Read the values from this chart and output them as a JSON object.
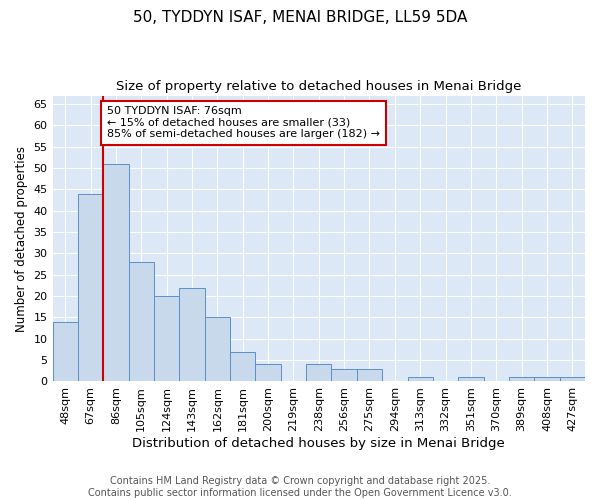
{
  "title1": "50, TYDDYN ISAF, MENAI BRIDGE, LL59 5DA",
  "title2": "Size of property relative to detached houses in Menai Bridge",
  "xlabel": "Distribution of detached houses by size in Menai Bridge",
  "ylabel": "Number of detached properties",
  "categories": [
    "48sqm",
    "67sqm",
    "86sqm",
    "105sqm",
    "124sqm",
    "143sqm",
    "162sqm",
    "181sqm",
    "200sqm",
    "219sqm",
    "238sqm",
    "256sqm",
    "275sqm",
    "294sqm",
    "313sqm",
    "332sqm",
    "351sqm",
    "370sqm",
    "389sqm",
    "408sqm",
    "427sqm"
  ],
  "values": [
    14,
    44,
    51,
    28,
    20,
    22,
    15,
    7,
    4,
    0,
    4,
    3,
    3,
    0,
    1,
    0,
    1,
    0,
    1,
    1,
    1
  ],
  "bar_color": "#c9d9ec",
  "bar_edge_color": "#5b8fc9",
  "vline_x": 1.5,
  "vline_color": "#cc0000",
  "annotation_text": "50 TYDDYN ISAF: 76sqm\n← 15% of detached houses are smaller (33)\n85% of semi-detached houses are larger (182) →",
  "annotation_box_color": "white",
  "annotation_box_edge": "#cc0000",
  "ylim": [
    0,
    67
  ],
  "yticks": [
    0,
    5,
    10,
    15,
    20,
    25,
    30,
    35,
    40,
    45,
    50,
    55,
    60,
    65
  ],
  "footnote": "Contains HM Land Registry data © Crown copyright and database right 2025.\nContains public sector information licensed under the Open Government Licence v3.0.",
  "title1_fontsize": 11,
  "title2_fontsize": 9.5,
  "xlabel_fontsize": 9.5,
  "ylabel_fontsize": 8.5,
  "tick_fontsize": 8,
  "annot_fontsize": 8,
  "footnote_fontsize": 7,
  "background_color": "#dce8f5"
}
